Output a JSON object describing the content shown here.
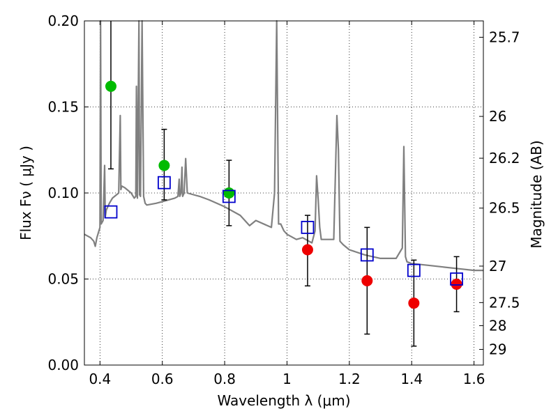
{
  "chart_data": {
    "type": "scatter",
    "title": "",
    "xlabel": "Wavelength  λ (μm)",
    "ylabel": "Flux  Fν  ( μJy )",
    "y2label": "Magnitude (AB)",
    "xlim": [
      0.35,
      1.63
    ],
    "ylim": [
      0.0,
      0.2
    ],
    "grid": true,
    "x_ticks": [
      0.4,
      0.6,
      0.8,
      1.0,
      1.2,
      1.4,
      1.6
    ],
    "x_tick_labels": [
      "0.4",
      "0.6",
      "0.8",
      "1",
      "1.2",
      "1.4",
      "1.6"
    ],
    "y_ticks": [
      0.0,
      0.05,
      0.1,
      0.15,
      0.2
    ],
    "y_tick_labels": [
      "0.00",
      "0.05",
      "0.10",
      "0.15",
      "0.20"
    ],
    "y2_ticks": [
      {
        "label": "25.7",
        "flux": 0.1905
      },
      {
        "label": "26",
        "flux": 0.1445
      },
      {
        "label": "26.2",
        "flux": 0.1202
      },
      {
        "label": "26.5",
        "flux": 0.0912
      },
      {
        "label": "27",
        "flux": 0.0575
      },
      {
        "label": "27.5",
        "flux": 0.0363
      },
      {
        "label": "28",
        "flux": 0.0229
      },
      {
        "label": "29",
        "flux": 0.0091
      }
    ],
    "colors": {
      "spectrum": "#808080",
      "observed_optical": "#00bb00",
      "observed_nir": "#ee0000",
      "model_box": "#0000cc",
      "errorbar": "#000000"
    },
    "series": [
      {
        "kind": "points",
        "marker": "circle",
        "color_key": "observed_optical",
        "x": [
          0.435,
          0.606,
          0.814
        ],
        "y": [
          0.162,
          0.116,
          0.1
        ],
        "yerr_low": [
          0.114,
          0.096,
          0.081
        ],
        "yerr_high": [
          0.205,
          0.137,
          0.119
        ]
      },
      {
        "kind": "points",
        "marker": "circle",
        "color_key": "observed_nir",
        "x": [
          1.066,
          1.257,
          1.407,
          1.544
        ],
        "y": [
          0.067,
          0.049,
          0.036,
          0.047
        ],
        "yerr_low": [
          0.046,
          0.018,
          0.011,
          0.031
        ],
        "yerr_high": [
          0.087,
          0.08,
          0.061,
          0.063
        ]
      },
      {
        "kind": "points",
        "marker": "square-open",
        "color_key": "model_box",
        "x": [
          0.435,
          0.606,
          0.814,
          1.066,
          1.257,
          1.407,
          1.544
        ],
        "y": [
          0.089,
          0.106,
          0.098,
          0.08,
          0.064,
          0.055,
          0.05
        ]
      },
      {
        "kind": "line",
        "color_key": "spectrum",
        "x": [
          0.35,
          0.37,
          0.38,
          0.385,
          0.39,
          0.4,
          0.402,
          0.404,
          0.41,
          0.415,
          0.417,
          0.42,
          0.43,
          0.44,
          0.46,
          0.465,
          0.467,
          0.47,
          0.48,
          0.5,
          0.51,
          0.515,
          0.517,
          0.52,
          0.525,
          0.527,
          0.53,
          0.535,
          0.54,
          0.545,
          0.55,
          0.58,
          0.6,
          0.62,
          0.64,
          0.65,
          0.654,
          0.656,
          0.66,
          0.663,
          0.665,
          0.67,
          0.675,
          0.68,
          0.7,
          0.72,
          0.75,
          0.8,
          0.85,
          0.88,
          0.9,
          0.95,
          0.96,
          0.967,
          0.973,
          0.98,
          0.99,
          1.0,
          1.03,
          1.05,
          1.08,
          1.09,
          1.095,
          1.1,
          1.105,
          1.11,
          1.15,
          1.16,
          1.165,
          1.17,
          1.18,
          1.2,
          1.25,
          1.3,
          1.35,
          1.37,
          1.375,
          1.38,
          1.385,
          1.4,
          1.45,
          1.5,
          1.55,
          1.6,
          1.63
        ],
        "y": [
          0.076,
          0.074,
          0.072,
          0.069,
          0.074,
          0.08,
          0.21,
          0.082,
          0.084,
          0.116,
          0.086,
          0.09,
          0.094,
          0.097,
          0.1,
          0.145,
          0.102,
          0.104,
          0.103,
          0.1,
          0.097,
          0.098,
          0.162,
          0.097,
          0.21,
          0.099,
          0.098,
          0.21,
          0.098,
          0.094,
          0.093,
          0.094,
          0.095,
          0.096,
          0.097,
          0.098,
          0.108,
          0.098,
          0.1,
          0.115,
          0.098,
          0.1,
          0.12,
          0.1,
          0.099,
          0.098,
          0.096,
          0.092,
          0.087,
          0.081,
          0.084,
          0.08,
          0.1,
          0.21,
          0.082,
          0.082,
          0.078,
          0.076,
          0.073,
          0.074,
          0.071,
          0.078,
          0.11,
          0.096,
          0.08,
          0.073,
          0.073,
          0.145,
          0.125,
          0.072,
          0.07,
          0.067,
          0.064,
          0.062,
          0.062,
          0.068,
          0.127,
          0.063,
          0.06,
          0.059,
          0.058,
          0.057,
          0.056,
          0.055,
          0.055
        ]
      }
    ]
  }
}
